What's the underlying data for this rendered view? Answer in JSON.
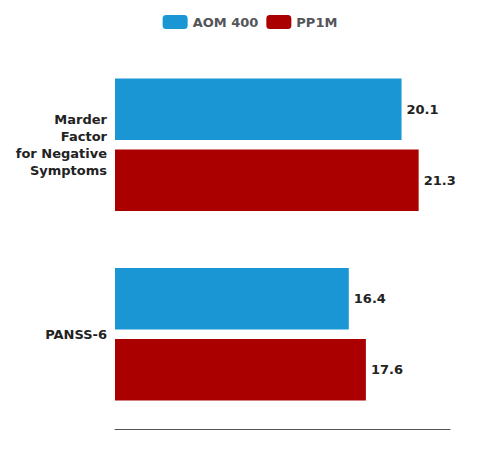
{
  "chart_data": {
    "type": "bar",
    "orientation": "horizontal",
    "categories": [
      "Marder\nFactor\nfor Negative\nSymptoms",
      "PANSS-6"
    ],
    "series": [
      {
        "name": "AOM 400",
        "color": "#1a96d4",
        "values": [
          20.1,
          16.4
        ]
      },
      {
        "name": "PP1M",
        "color": "#aa0000",
        "values": [
          21.3,
          17.6
        ]
      }
    ],
    "xlim": [
      0,
      23.5
    ],
    "data_labels": true,
    "tick_labels": "y",
    "grid": false,
    "legend": "top"
  }
}
